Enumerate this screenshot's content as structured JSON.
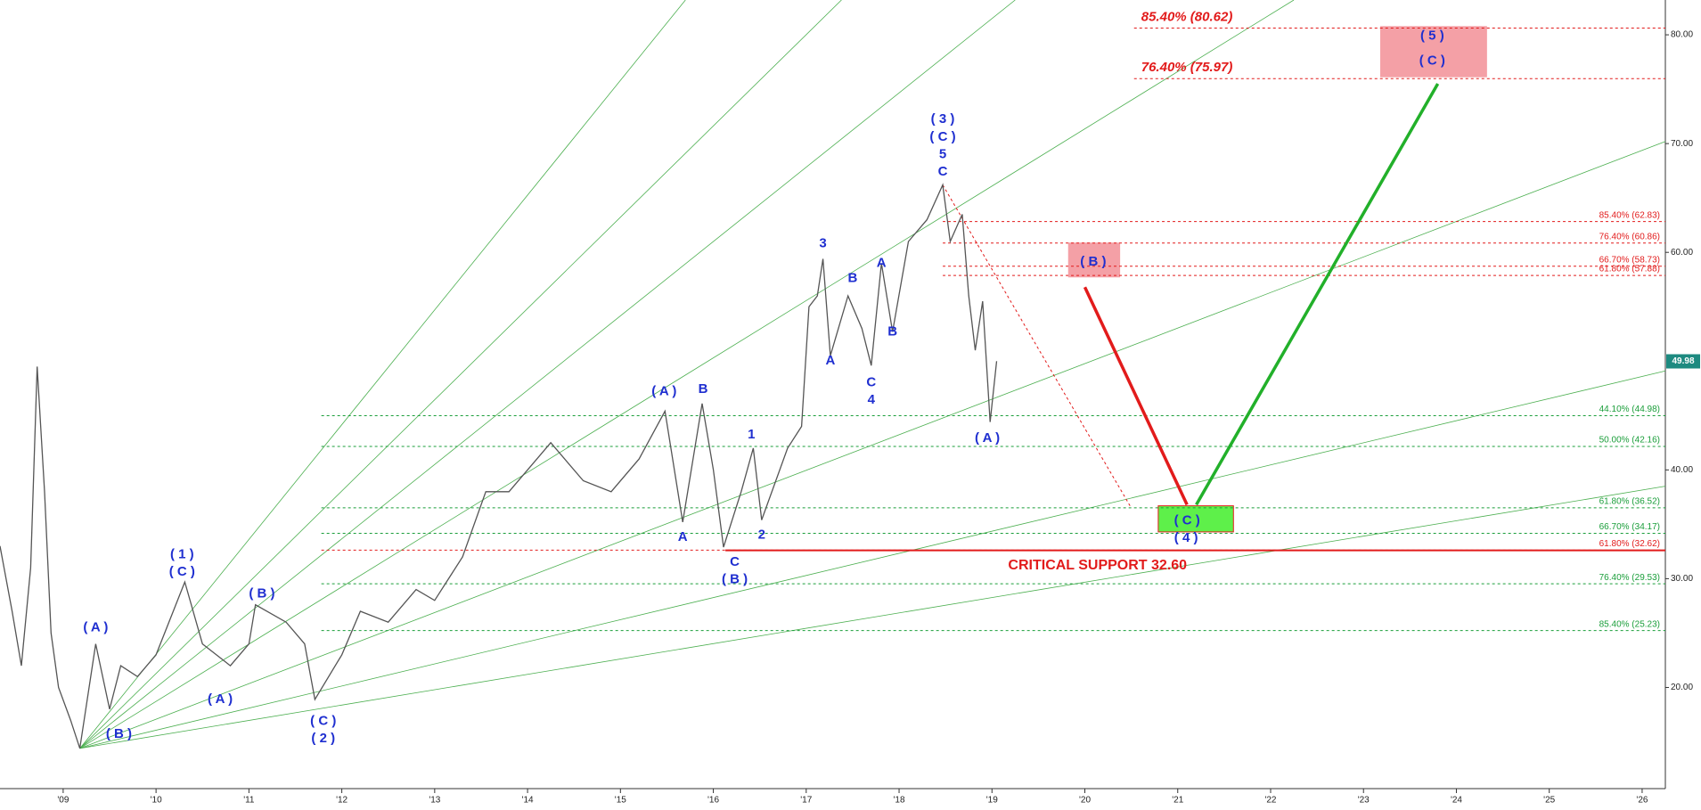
{
  "chart_data": {
    "type": "line",
    "xlim": [
      2008.32,
      2026.25
    ],
    "ylim": [
      10.7,
      83.2
    ],
    "xticks": [
      {
        "value": 2009,
        "label": "'09"
      },
      {
        "value": 2010,
        "label": "'10"
      },
      {
        "value": 2011,
        "label": "'11"
      },
      {
        "value": 2012,
        "label": "'12"
      },
      {
        "value": 2013,
        "label": "'13"
      },
      {
        "value": 2014,
        "label": "'14"
      },
      {
        "value": 2015,
        "label": "'15"
      },
      {
        "value": 2016,
        "label": "'16"
      },
      {
        "value": 2017,
        "label": "'17"
      },
      {
        "value": 2018,
        "label": "'18"
      },
      {
        "value": 2019,
        "label": "'19"
      },
      {
        "value": 2020,
        "label": "'20"
      },
      {
        "value": 2021,
        "label": "'21"
      },
      {
        "value": 2022,
        "label": "'22"
      },
      {
        "value": 2023,
        "label": "'23"
      },
      {
        "value": 2024,
        "label": "'24"
      },
      {
        "value": 2025,
        "label": "'25"
      },
      {
        "value": 2026,
        "label": "'26"
      }
    ],
    "yticks": [
      {
        "value": 20,
        "label": "20.00"
      },
      {
        "value": 30,
        "label": "30.00"
      },
      {
        "value": 40,
        "label": "40.00"
      },
      {
        "value": 60,
        "label": "60.00"
      },
      {
        "value": 70,
        "label": "70.00"
      },
      {
        "value": 80,
        "label": "80.00"
      }
    ],
    "series": [
      {
        "color": "#555555",
        "x": [
          2008.32,
          2008.45,
          2008.55,
          2008.65,
          2008.72,
          2008.8,
          2008.87,
          2008.95,
          2009.08,
          2009.18,
          2009.35,
          2009.5,
          2009.62,
          2009.8,
          2010.0,
          2010.31,
          2010.5,
          2010.8,
          2011.0,
          2011.07,
          2011.4,
          2011.6,
          2011.71,
          2012.0,
          2012.2,
          2012.5,
          2012.8,
          2013.0,
          2013.3,
          2013.55,
          2013.8,
          2014.0,
          2014.25,
          2014.6,
          2014.9,
          2015.2,
          2015.48,
          2015.67,
          2015.88,
          2016.0,
          2016.11,
          2016.3,
          2016.43,
          2016.52,
          2016.8,
          2016.95,
          2017.03,
          2017.12,
          2017.18,
          2017.26,
          2017.45,
          2017.6,
          2017.7,
          2017.81,
          2017.93,
          2018.1,
          2018.3,
          2018.47,
          2018.55,
          2018.68,
          2018.75,
          2018.82,
          2018.9,
          2018.98,
          2019.05
        ],
        "values": [
          33,
          27,
          22,
          31,
          49.5,
          38,
          25,
          20,
          17,
          14.4,
          24,
          18,
          22,
          21,
          23,
          29.7,
          24,
          22,
          24,
          27.6,
          26,
          24,
          18.9,
          23,
          27,
          26,
          29,
          28,
          32,
          38,
          38,
          40,
          42.5,
          39,
          38,
          41,
          45.4,
          35.2,
          46.1,
          40,
          32.9,
          38,
          42,
          35.4,
          42,
          44,
          55,
          56,
          59.4,
          50.5,
          56,
          53,
          49.6,
          59,
          52.7,
          61,
          63,
          66.2,
          61,
          63.5,
          56,
          51,
          55.5,
          44.4,
          50
        ]
      }
    ],
    "last_price": 49.98,
    "levels": [
      {
        "value": 44.98,
        "label": "44.10% (44.98)",
        "color": "#1a9e3a",
        "start": 2011.78
      },
      {
        "value": 42.16,
        "label": "50.00% (42.16)",
        "color": "#1a9e3a",
        "start": 2011.78
      },
      {
        "value": 36.52,
        "label": "61.80% (36.52)",
        "color": "#1a9e3a",
        "start": 2011.78
      },
      {
        "value": 34.17,
        "label": "66.70% (34.17)",
        "color": "#1a9e3a",
        "start": 2011.78
      },
      {
        "value": 32.62,
        "label": "61.80% (32.62)",
        "color": "#e21b1b",
        "start": 2011.78
      },
      {
        "value": 29.53,
        "label": "76.40% (29.53)",
        "color": "#1a9e3a",
        "start": 2011.78
      },
      {
        "value": 25.23,
        "label": "85.40% (25.23)",
        "color": "#1a9e3a",
        "start": 2011.78
      },
      {
        "value": 62.83,
        "label": "85.40% (62.83)",
        "color": "#e21b1b",
        "start": 2018.47
      },
      {
        "value": 60.86,
        "label": "76.40% (60.86)",
        "color": "#e21b1b",
        "start": 2018.47
      },
      {
        "value": 58.73,
        "label": "66.70% (58.73)",
        "color": "#e21b1b",
        "start": 2018.47
      },
      {
        "value": 57.88,
        "label": "61.80% (57.88)",
        "color": "#e21b1b",
        "start": 2018.47
      }
    ],
    "targets": [
      {
        "value": 80.62,
        "label": "85.40% (80.62)",
        "start": 2020.53
      },
      {
        "value": 75.97,
        "label": "76.40% (75.97)",
        "start": 2020.53
      }
    ],
    "support": {
      "value": 32.6,
      "label": "CRITICAL SUPPORT 32.60",
      "start": 2016.13
    },
    "fan": {
      "origin": [
        2009.18,
        14.4
      ],
      "ends": [
        [
          2015.7,
          83.2
        ],
        [
          2017.38,
          83.2
        ],
        [
          2019.25,
          83.2
        ],
        [
          2022.25,
          83.2
        ],
        [
          2026.25,
          70.2
        ],
        [
          2026.25,
          49.1
        ],
        [
          2026.25,
          38.5
        ]
      ]
    },
    "zones": [
      {
        "x": [
          2019.82,
          2020.38
        ],
        "y": [
          57.7,
          60.9
        ],
        "color": "#f4a0a6"
      },
      {
        "x": [
          2020.79,
          2021.6
        ],
        "y": [
          34.3,
          36.7
        ],
        "color": "#5ef04a"
      },
      {
        "x": [
          2023.18,
          2024.33
        ],
        "y": [
          76.1,
          80.8
        ],
        "color": "#f4a0a6"
      }
    ],
    "arrows": [
      {
        "from": [
          2020.0,
          56.8
        ],
        "to": [
          2021.1,
          36.8
        ],
        "color": "#e21b1b"
      },
      {
        "from": [
          2021.2,
          36.8
        ],
        "to": [
          2023.8,
          75.5
        ],
        "color": "#22b02a"
      }
    ],
    "projection": {
      "from": [
        2018.47,
        66.2
      ],
      "to": [
        2020.5,
        36.5
      ]
    },
    "waves": [
      {
        "text": "( A )",
        "x": 2009.35,
        "y": 25.5
      },
      {
        "text": "( B )",
        "x": 2009.6,
        "y": 15.7
      },
      {
        "text": "( 1 )",
        "x": 2010.28,
        "y": 32.2
      },
      {
        "text": "( C )",
        "x": 2010.28,
        "y": 30.6
      },
      {
        "text": "( B )",
        "x": 2011.14,
        "y": 28.6
      },
      {
        "text": "( A )",
        "x": 2010.69,
        "y": 18.9
      },
      {
        "text": "( C )",
        "x": 2011.8,
        "y": 16.9
      },
      {
        "text": "( 2 )",
        "x": 2011.8,
        "y": 15.3
      },
      {
        "text": "( A )",
        "x": 2015.47,
        "y": 47.2
      },
      {
        "text": "B",
        "x": 2015.89,
        "y": 47.4
      },
      {
        "text": "A",
        "x": 2015.67,
        "y": 33.8
      },
      {
        "text": "C",
        "x": 2016.23,
        "y": 31.5
      },
      {
        "text": "( B )",
        "x": 2016.23,
        "y": 29.9
      },
      {
        "text": "1",
        "x": 2016.41,
        "y": 43.2
      },
      {
        "text": "2",
        "x": 2016.52,
        "y": 34.0
      },
      {
        "text": "3",
        "x": 2017.18,
        "y": 60.8
      },
      {
        "text": "A",
        "x": 2017.26,
        "y": 50.0
      },
      {
        "text": "B",
        "x": 2017.5,
        "y": 57.6
      },
      {
        "text": "C",
        "x": 2017.7,
        "y": 48.0
      },
      {
        "text": "4",
        "x": 2017.7,
        "y": 46.4
      },
      {
        "text": "A",
        "x": 2017.81,
        "y": 59.0
      },
      {
        "text": "B",
        "x": 2017.93,
        "y": 52.7
      },
      {
        "text": "( 3 )",
        "x": 2018.47,
        "y": 72.2
      },
      {
        "text": "( C )",
        "x": 2018.47,
        "y": 70.6
      },
      {
        "text": "5",
        "x": 2018.47,
        "y": 69.0
      },
      {
        "text": "C",
        "x": 2018.47,
        "y": 67.4
      },
      {
        "text": "( A )",
        "x": 2018.95,
        "y": 42.9
      },
      {
        "text": "( B )",
        "x": 2020.09,
        "y": 59.1
      },
      {
        "text": "( C )",
        "x": 2021.1,
        "y": 35.3
      },
      {
        "text": "( 4 )",
        "x": 2021.09,
        "y": 33.7
      },
      {
        "text": "( 5 )",
        "x": 2023.74,
        "y": 79.9
      },
      {
        "text": "( C )",
        "x": 2023.74,
        "y": 77.6
      }
    ]
  }
}
